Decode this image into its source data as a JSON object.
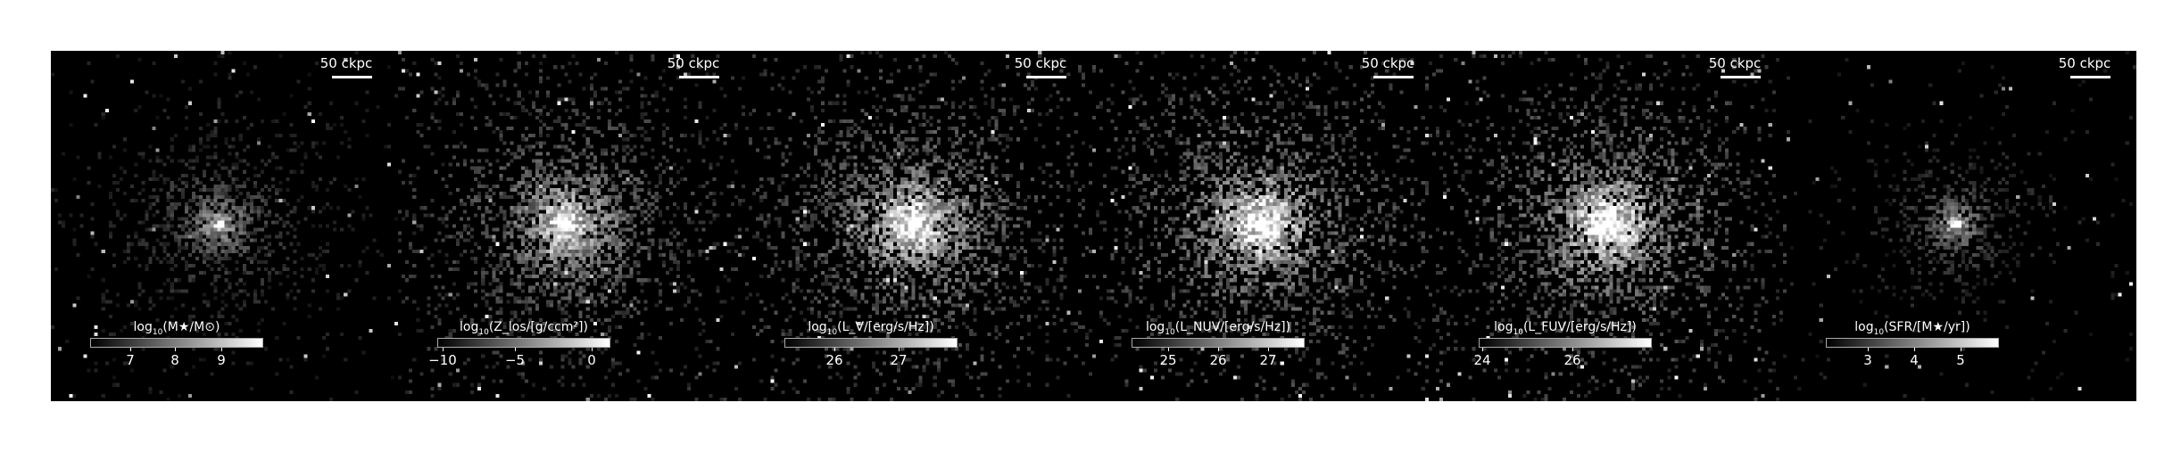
{
  "scale_bar_label": "50 ckpc",
  "panels": [
    {
      "quantity": "stellar_mass",
      "colorbar_prefix": "log",
      "colorbar_sub": "10",
      "colorbar_rest": "(M★/M⊙)",
      "ticks": [
        {
          "label": "7",
          "frac": 0.23
        },
        {
          "label": "8",
          "frac": 0.49
        },
        {
          "label": "9",
          "frac": 0.76
        }
      ],
      "spread": 0.9,
      "brightness": 0.55
    },
    {
      "quantity": "metallicity",
      "colorbar_prefix": "log",
      "colorbar_sub": "10",
      "colorbar_rest": "(Z_los/[g/ccm²])",
      "ticks": [
        {
          "label": "−10",
          "frac": 0.03
        },
        {
          "label": "−5",
          "frac": 0.45
        },
        {
          "label": "0",
          "frac": 0.89
        }
      ],
      "spread": 1.35,
      "brightness": 0.8
    },
    {
      "quantity": "luminosity_v",
      "colorbar_prefix": "log",
      "colorbar_sub": "10",
      "colorbar_rest": "(L_V/[erg/s/Hz])",
      "ticks": [
        {
          "label": "26",
          "frac": 0.29
        },
        {
          "label": "27",
          "frac": 0.66
        }
      ],
      "spread": 1.4,
      "brightness": 0.9
    },
    {
      "quantity": "luminosity_nuv",
      "colorbar_prefix": "log",
      "colorbar_sub": "10",
      "colorbar_rest": "(L_NUV/[erg/s/Hz])",
      "ticks": [
        {
          "label": "25",
          "frac": 0.21
        },
        {
          "label": "26",
          "frac": 0.5
        },
        {
          "label": "27",
          "frac": 0.79
        }
      ],
      "spread": 1.4,
      "brightness": 0.95
    },
    {
      "quantity": "luminosity_fuv",
      "colorbar_prefix": "log",
      "colorbar_sub": "10",
      "colorbar_rest": "(L_FUV/[erg/s/Hz])",
      "ticks": [
        {
          "label": "24",
          "frac": 0.02
        },
        {
          "label": "26",
          "frac": 0.54
        }
      ],
      "spread": 1.4,
      "brightness": 0.95
    },
    {
      "quantity": "star_formation_rate",
      "colorbar_prefix": "log",
      "colorbar_sub": "10",
      "colorbar_rest": "(SFR/[M★/yr])",
      "ticks": [
        {
          "label": "3",
          "frac": 0.24
        },
        {
          "label": "4",
          "frac": 0.51
        },
        {
          "label": "5",
          "frac": 0.78
        }
      ],
      "spread": 0.65,
      "brightness": 0.6
    }
  ]
}
